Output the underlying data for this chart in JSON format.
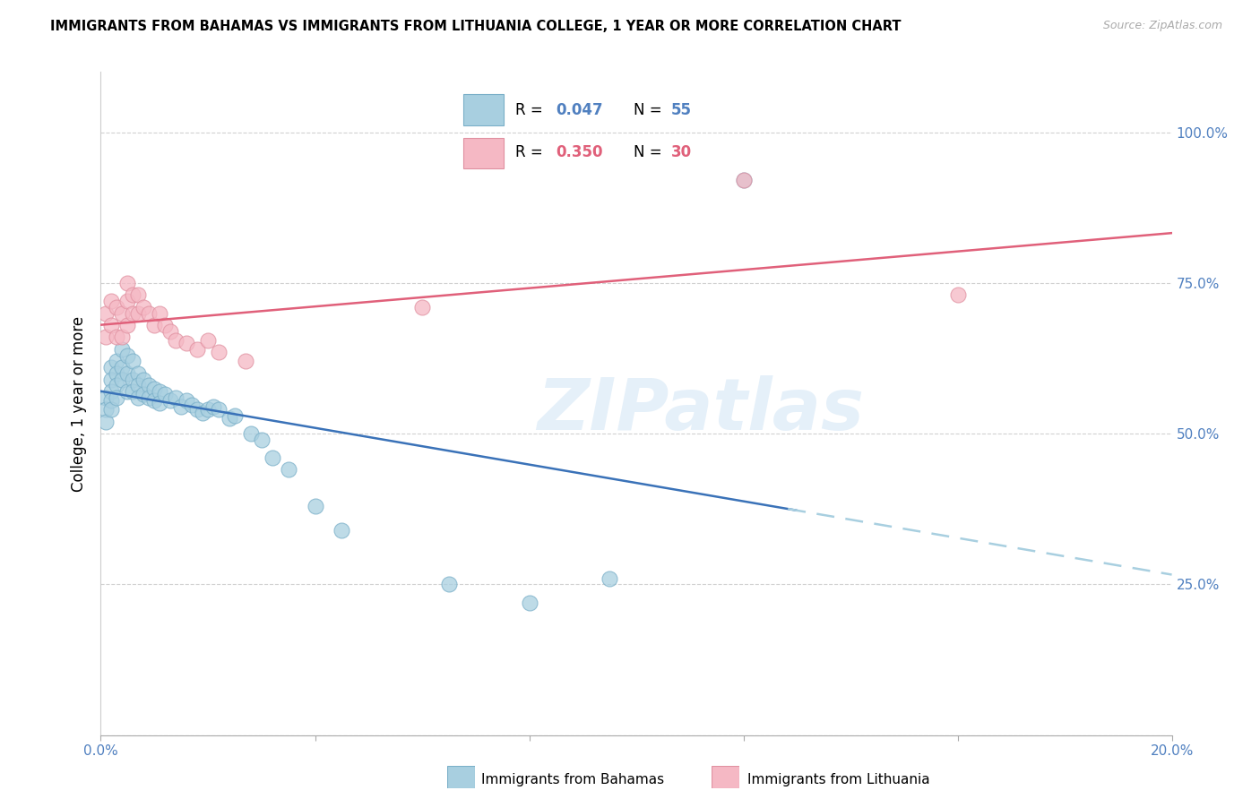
{
  "title": "IMMIGRANTS FROM BAHAMAS VS IMMIGRANTS FROM LITHUANIA COLLEGE, 1 YEAR OR MORE CORRELATION CHART",
  "source": "Source: ZipAtlas.com",
  "ylabel": "College, 1 year or more",
  "xlim": [
    0.0,
    0.2
  ],
  "ylim": [
    0.0,
    1.1
  ],
  "bahamas_color": "#a8cfe0",
  "bahamas_edge": "#7aafc8",
  "lithuania_color": "#f5b8c4",
  "lithuania_edge": "#e090a0",
  "bahamas_line_color": "#3a72b8",
  "lithuania_line_color": "#e0607a",
  "bahamas_dashed_color": "#a8cfe0",
  "legend_r_bah": "0.047",
  "legend_n_bah": "55",
  "legend_r_lit": "0.350",
  "legend_n_lit": "30",
  "watermark": "ZIPatlas",
  "label_bah": "Immigrants from Bahamas",
  "label_lit": "Immigrants from Lithuania",
  "tick_color": "#5080c0",
  "bahamas_x": [
    0.001,
    0.001,
    0.001,
    0.002,
    0.002,
    0.002,
    0.002,
    0.002,
    0.003,
    0.003,
    0.003,
    0.003,
    0.004,
    0.004,
    0.004,
    0.005,
    0.005,
    0.005,
    0.006,
    0.006,
    0.006,
    0.007,
    0.007,
    0.007,
    0.008,
    0.008,
    0.009,
    0.009,
    0.01,
    0.01,
    0.011,
    0.011,
    0.012,
    0.013,
    0.014,
    0.015,
    0.016,
    0.017,
    0.018,
    0.019,
    0.02,
    0.021,
    0.022,
    0.024,
    0.025,
    0.028,
    0.03,
    0.032,
    0.035,
    0.04,
    0.045,
    0.065,
    0.08,
    0.095,
    0.12
  ],
  "bahamas_y": [
    0.56,
    0.54,
    0.52,
    0.61,
    0.59,
    0.57,
    0.555,
    0.54,
    0.62,
    0.6,
    0.58,
    0.56,
    0.64,
    0.61,
    0.59,
    0.63,
    0.6,
    0.57,
    0.62,
    0.59,
    0.57,
    0.6,
    0.58,
    0.56,
    0.59,
    0.565,
    0.58,
    0.56,
    0.575,
    0.555,
    0.57,
    0.55,
    0.565,
    0.555,
    0.56,
    0.545,
    0.555,
    0.548,
    0.54,
    0.535,
    0.54,
    0.545,
    0.54,
    0.525,
    0.53,
    0.5,
    0.49,
    0.46,
    0.44,
    0.38,
    0.34,
    0.25,
    0.22,
    0.26,
    0.92
  ],
  "lithuania_x": [
    0.001,
    0.001,
    0.002,
    0.002,
    0.003,
    0.003,
    0.004,
    0.004,
    0.005,
    0.005,
    0.005,
    0.006,
    0.006,
    0.007,
    0.007,
    0.008,
    0.009,
    0.01,
    0.011,
    0.012,
    0.013,
    0.014,
    0.016,
    0.018,
    0.02,
    0.022,
    0.027,
    0.06,
    0.12,
    0.16
  ],
  "lithuania_y": [
    0.66,
    0.7,
    0.68,
    0.72,
    0.66,
    0.71,
    0.66,
    0.7,
    0.68,
    0.72,
    0.75,
    0.7,
    0.73,
    0.7,
    0.73,
    0.71,
    0.7,
    0.68,
    0.7,
    0.68,
    0.67,
    0.655,
    0.65,
    0.64,
    0.655,
    0.635,
    0.62,
    0.71,
    0.92,
    0.73
  ]
}
